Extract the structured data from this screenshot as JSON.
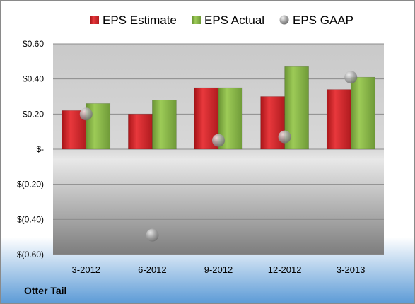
{
  "chart_data": {
    "type": "bar",
    "title": "",
    "xlabel": "",
    "ylabel": "",
    "company": "Otter Tail",
    "categories": [
      "3-2012",
      "6-2012",
      "9-2012",
      "12-2012",
      "3-2013"
    ],
    "series": [
      {
        "name": "EPS Estimate",
        "kind": "bar",
        "color": "#d9272b",
        "values": [
          0.22,
          0.2,
          0.35,
          0.3,
          0.34
        ]
      },
      {
        "name": "EPS Actual",
        "kind": "bar",
        "color": "#8cb848",
        "values": [
          0.26,
          0.28,
          0.35,
          0.47,
          0.41
        ]
      },
      {
        "name": "EPS GAAP",
        "kind": "marker",
        "color": "#a6a6a6",
        "values": [
          0.2,
          -0.49,
          0.05,
          0.07,
          0.41
        ]
      }
    ],
    "ylim": [
      -0.6,
      0.6
    ],
    "yticks": [
      0.6,
      0.4,
      0.2,
      0,
      -0.2,
      -0.4,
      -0.6
    ],
    "ytick_labels": [
      "$0.60",
      "$0.40",
      "$0.20",
      "$-",
      "$(0.20)",
      "$(0.40)",
      "$(0.60)"
    ],
    "grid": true,
    "legend": "top"
  }
}
